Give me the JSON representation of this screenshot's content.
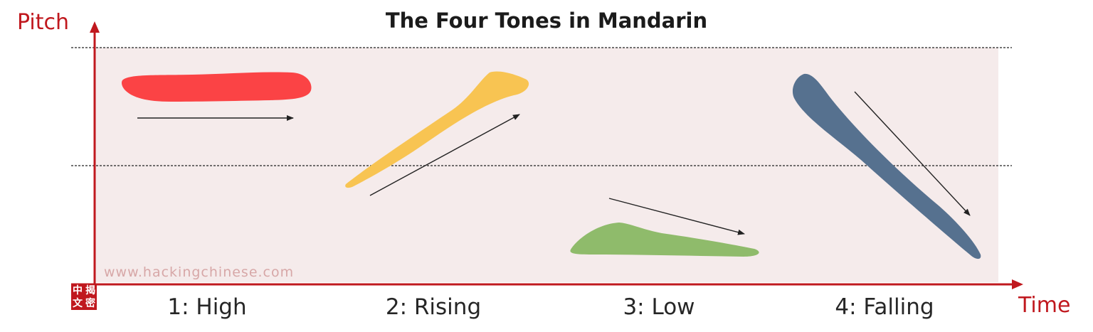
{
  "title": "The Four Tones in Mandarin",
  "axes": {
    "y_label": "Pitch",
    "x_label": "Time"
  },
  "tones": [
    {
      "label": "1: High",
      "color": "#fb4345"
    },
    {
      "label": "2: Rising",
      "color": "#f8c452"
    },
    {
      "label": "3: Low",
      "color": "#8fbb6b"
    },
    {
      "label": "4: Falling",
      "color": "#56718f"
    }
  ],
  "watermark": "www.hackingchinese.com",
  "logo": {
    "chars": [
      "中",
      "揭",
      "文",
      "密"
    ]
  },
  "colors": {
    "axis": "#c0181e",
    "plot_background": "#f5ebeb",
    "arrow": "#222222"
  }
}
